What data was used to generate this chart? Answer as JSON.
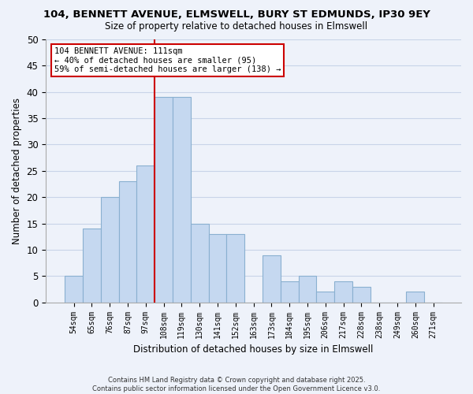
{
  "title1": "104, BENNETT AVENUE, ELMSWELL, BURY ST EDMUNDS, IP30 9EY",
  "title2": "Size of property relative to detached houses in Elmswell",
  "xlabel": "Distribution of detached houses by size in Elmswell",
  "ylabel": "Number of detached properties",
  "categories": [
    "54sqm",
    "65sqm",
    "76sqm",
    "87sqm",
    "97sqm",
    "108sqm",
    "119sqm",
    "130sqm",
    "141sqm",
    "152sqm",
    "163sqm",
    "173sqm",
    "184sqm",
    "195sqm",
    "206sqm",
    "217sqm",
    "228sqm",
    "238sqm",
    "249sqm",
    "260sqm",
    "271sqm"
  ],
  "values": [
    5,
    14,
    20,
    23,
    26,
    39,
    39,
    15,
    13,
    13,
    0,
    9,
    4,
    5,
    2,
    4,
    3,
    0,
    0,
    2,
    0
  ],
  "bar_color": "#c5d8f0",
  "bar_edge_color": "#8ab0d0",
  "vline_color": "#cc0000",
  "vline_x": 5,
  "ylim": [
    0,
    50
  ],
  "yticks": [
    0,
    5,
    10,
    15,
    20,
    25,
    30,
    35,
    40,
    45,
    50
  ],
  "annotation_title": "104 BENNETT AVENUE: 111sqm",
  "annotation_line1": "← 40% of detached houses are smaller (95)",
  "annotation_line2": "59% of semi-detached houses are larger (138) →",
  "grid_color": "#c8d4e8",
  "bg_color": "#eef2fa",
  "footnote1": "Contains HM Land Registry data © Crown copyright and database right 2025.",
  "footnote2": "Contains public sector information licensed under the Open Government Licence v3.0."
}
